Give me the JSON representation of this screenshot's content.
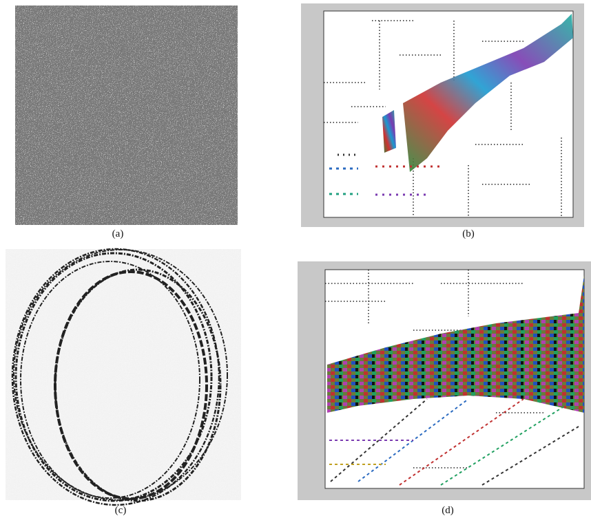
{
  "figure": {
    "panels": [
      {
        "caption": "(a)"
      },
      {
        "caption": "(b)"
      },
      {
        "caption": "(c)"
      },
      {
        "caption": "(d)"
      }
    ]
  }
}
